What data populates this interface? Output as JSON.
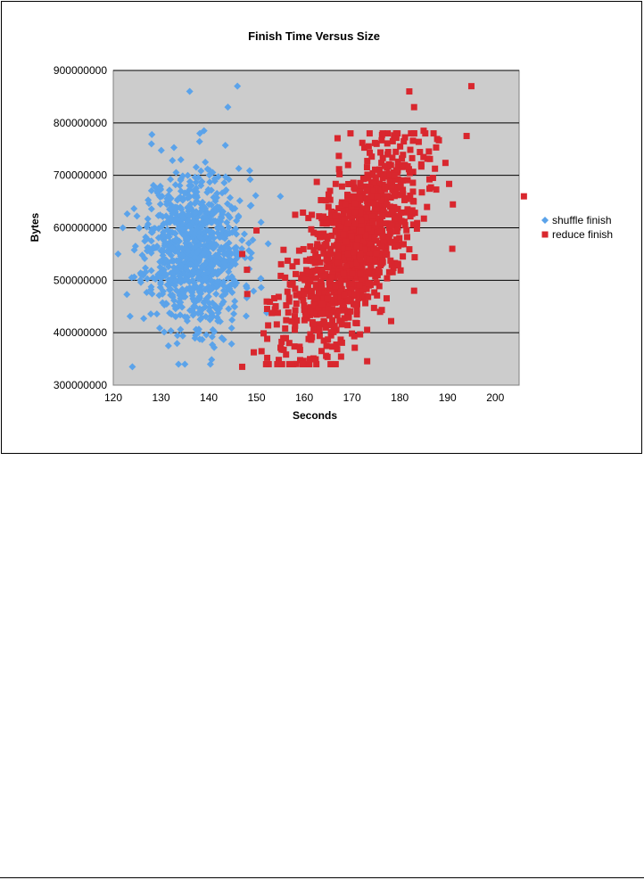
{
  "chart_data": {
    "type": "scatter",
    "title": "Finish Time Versus Size",
    "xlabel": "Seconds",
    "ylabel": "Bytes",
    "xlim": [
      120,
      205
    ],
    "ylim": [
      300000000,
      900000000
    ],
    "x_ticks": [
      "120",
      "130",
      "140",
      "150",
      "160",
      "170",
      "180",
      "190",
      "200"
    ],
    "y_ticks": [
      "300000000",
      "400000000",
      "500000000",
      "600000000",
      "700000000",
      "800000000",
      "900000000"
    ],
    "grid": "horizontal",
    "legend_position": "right",
    "plot_background": "#cccccc",
    "series": [
      {
        "name": "shuffle finish",
        "marker": "diamond",
        "color": "#5ba3ea",
        "cluster": {
          "center": [
            137,
            560000000
          ],
          "spread": [
            5.0,
            75000000
          ],
          "n": 900,
          "seed": 11
        },
        "points": [
          [
            124,
            335000000
          ],
          [
            136,
            860000000
          ],
          [
            146,
            870000000
          ],
          [
            144,
            830000000
          ],
          [
            121,
            550000000
          ],
          [
            122,
            600000000
          ],
          [
            128,
            760000000
          ],
          [
            139,
            785000000
          ],
          [
            135,
            340000000
          ],
          [
            155,
            660000000
          ]
        ]
      },
      {
        "name": "reduce finish",
        "marker": "square",
        "color": "#d9272e",
        "cluster": {
          "center": [
            170,
            555000000
          ],
          "spread": [
            7.0,
            75000000
          ],
          "n": 1100,
          "seed": 23
        },
        "points": [
          [
            182,
            860000000
          ],
          [
            183,
            830000000
          ],
          [
            195,
            870000000
          ],
          [
            194,
            775000000
          ],
          [
            206,
            660000000
          ],
          [
            191,
            560000000
          ],
          [
            147,
            335000000
          ],
          [
            152,
            340000000
          ],
          [
            147,
            550000000
          ],
          [
            148,
            520000000
          ],
          [
            150,
            595000000
          ],
          [
            185,
            785000000
          ],
          [
            183,
            480000000
          ]
        ]
      }
    ]
  }
}
